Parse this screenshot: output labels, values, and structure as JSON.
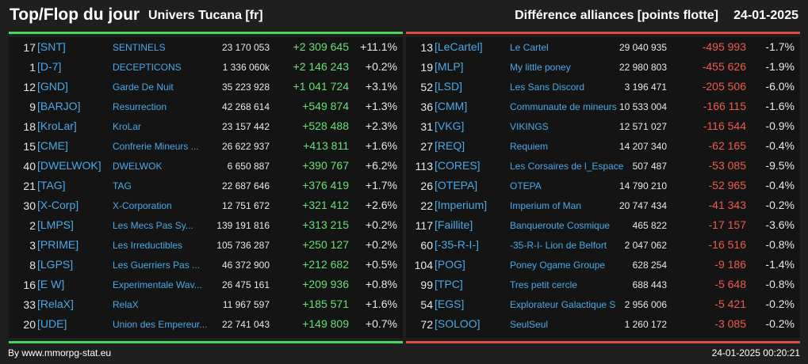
{
  "header": {
    "title": "Top/Flop du jour",
    "universe": "Univers Tucana [fr]",
    "mode": "Différence alliances [points flotte]",
    "date": "24-01-2025"
  },
  "colors": {
    "gain": "#66e077",
    "loss": "#ef5a4f",
    "link": "#4aa9e8",
    "background": "#1f1f1f"
  },
  "top": [
    {
      "rank": "17",
      "tag": "[SNT]",
      "name": "SENTINELS",
      "points": "23 170 053",
      "diff": "+2 309 645",
      "pct": "+11.1%"
    },
    {
      "rank": "1",
      "tag": "[D-7]",
      "name": "DECEPTICONS",
      "points": "1 336 060k",
      "diff": "+2 146 243",
      "pct": "+0.2%"
    },
    {
      "rank": "12",
      "tag": "[GND]",
      "name": "Garde De Nuit",
      "points": "35 223 928",
      "diff": "+1 041 724",
      "pct": "+3.1%"
    },
    {
      "rank": "9",
      "tag": "[BARJO]",
      "name": "Resurrection",
      "points": "42 268 614",
      "diff": "+549 874",
      "pct": "+1.3%"
    },
    {
      "rank": "18",
      "tag": "[KroLar]",
      "name": "KroLar",
      "points": "23 157 442",
      "diff": "+528 488",
      "pct": "+2.3%"
    },
    {
      "rank": "15",
      "tag": "[CME]",
      "name": "Confrerie Mineurs ...",
      "points": "26 622 937",
      "diff": "+413 811",
      "pct": "+1.6%"
    },
    {
      "rank": "40",
      "tag": "[DWELWOK]",
      "name": "DWELWOK",
      "points": "6 650 887",
      "diff": "+390 767",
      "pct": "+6.2%"
    },
    {
      "rank": "21",
      "tag": "[TAG]",
      "name": "TAG",
      "points": "22 687 646",
      "diff": "+376 419",
      "pct": "+1.7%"
    },
    {
      "rank": "30",
      "tag": "[X-Corp]",
      "name": "X-Corporation",
      "points": "12 751 672",
      "diff": "+321 412",
      "pct": "+2.6%"
    },
    {
      "rank": "2",
      "tag": "[LMPS]",
      "name": "Les Mecs Pas Sy...",
      "points": "139 191 816",
      "diff": "+313 215",
      "pct": "+0.2%"
    },
    {
      "rank": "3",
      "tag": "[PRIME]",
      "name": "Les Irreductibles",
      "points": "105 736 287",
      "diff": "+250 127",
      "pct": "+0.2%"
    },
    {
      "rank": "8",
      "tag": "[LGPS]",
      "name": "Les Guerriers Pas ...",
      "points": "46 372 900",
      "diff": "+212 682",
      "pct": "+0.5%"
    },
    {
      "rank": "16",
      "tag": "[E W]",
      "name": "Experimentale Wav...",
      "points": "26 475 161",
      "diff": "+209 936",
      "pct": "+0.8%"
    },
    {
      "rank": "33",
      "tag": "[RelaX]",
      "name": "RelaX",
      "points": "11 967 597",
      "diff": "+185 571",
      "pct": "+1.6%"
    },
    {
      "rank": "20",
      "tag": "[UDE]",
      "name": "Union des Empereur...",
      "points": "22 741 043",
      "diff": "+149 809",
      "pct": "+0.7%"
    }
  ],
  "flop": [
    {
      "rank": "13",
      "tag": "[LeCartel]",
      "name": "Le Cartel",
      "points": "29 040 935",
      "diff": "-495 993",
      "pct": "-1.7%"
    },
    {
      "rank": "19",
      "tag": "[MLP]",
      "name": "My little poney",
      "points": "22 980 803",
      "diff": "-455 626",
      "pct": "-1.9%"
    },
    {
      "rank": "52",
      "tag": "[LSD]",
      "name": "Les Sans Discord",
      "points": "3 196 471",
      "diff": "-205 506",
      "pct": "-6.0%"
    },
    {
      "rank": "36",
      "tag": "[CMM]",
      "name": "Communaute de mineurs",
      "points": "10 533 004",
      "diff": "-166 115",
      "pct": "-1.6%"
    },
    {
      "rank": "31",
      "tag": "[VKG]",
      "name": "VIKINGS",
      "points": "12 571 027",
      "diff": "-116 544",
      "pct": "-0.9%"
    },
    {
      "rank": "27",
      "tag": "[REQ]",
      "name": "Requiem",
      "points": "14 207 340",
      "diff": "-62 165",
      "pct": "-0.4%"
    },
    {
      "rank": "113",
      "tag": "[CORES]",
      "name": "Les Corsaires de l_Espace",
      "points": "507 487",
      "diff": "-53 085",
      "pct": "-9.5%"
    },
    {
      "rank": "26",
      "tag": "[OTEPA]",
      "name": "OTEPA",
      "points": "14 790 210",
      "diff": "-52 965",
      "pct": "-0.4%"
    },
    {
      "rank": "22",
      "tag": "[Imperium]",
      "name": "Imperium of Man",
      "points": "20 747 434",
      "diff": "-41 343",
      "pct": "-0.2%"
    },
    {
      "rank": "117",
      "tag": "[Faillite]",
      "name": "Banqueroute Cosmique",
      "points": "465 822",
      "diff": "-17 157",
      "pct": "-3.6%"
    },
    {
      "rank": "60",
      "tag": "[-35-R-I-]",
      "name": "-35-R-I- Lion de Belfort",
      "points": "2 047 062",
      "diff": "-16 516",
      "pct": "-0.8%"
    },
    {
      "rank": "104",
      "tag": "[POG]",
      "name": "Poney Ogame Groupe",
      "points": "628 254",
      "diff": "-9 186",
      "pct": "-1.4%"
    },
    {
      "rank": "99",
      "tag": "[TPC]",
      "name": "Tres petit cercle",
      "points": "688 443",
      "diff": "-5 648",
      "pct": "-0.8%"
    },
    {
      "rank": "54",
      "tag": "[EGS]",
      "name": "Explorateur Galactique S",
      "points": "2 956 006",
      "diff": "-5 421",
      "pct": "-0.2%"
    },
    {
      "rank": "72",
      "tag": "[SOLOO]",
      "name": "SeulSeul",
      "points": "1 260 172",
      "diff": "-3 085",
      "pct": "-0.2%"
    }
  ],
  "footer": {
    "source": "By www.mmorpg-stat.eu",
    "timestamp": "24-01-2025 00:20:21"
  }
}
